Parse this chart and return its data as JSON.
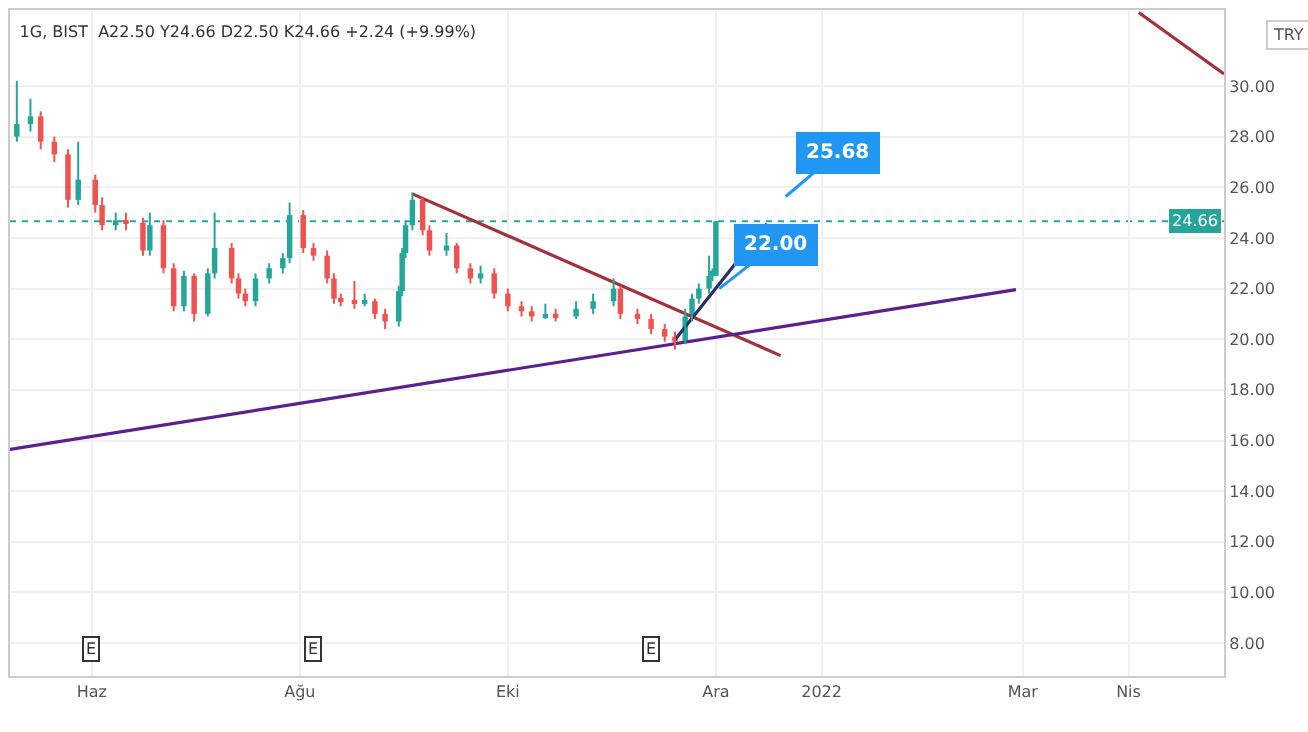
{
  "chart_data": {
    "type": "candlestick",
    "title": "1G, BIST  A22.50 Y24.66 D22.50 K24.66 +2.24 (+9.99%)",
    "x": [
      "2021-05-10",
      "2021-05-14",
      "2021-05-17",
      "2021-05-21",
      "2021-05-25",
      "2021-05-28",
      "2021-06-02",
      "2021-06-04",
      "2021-06-08",
      "2021-06-11",
      "2021-06-16",
      "2021-06-18",
      "2021-06-22",
      "2021-06-25",
      "2021-06-28",
      "2021-07-01",
      "2021-07-05",
      "2021-07-07",
      "2021-07-12",
      "2021-07-14",
      "2021-07-16",
      "2021-07-19",
      "2021-07-23",
      "2021-07-27",
      "2021-07-29",
      "2021-08-02",
      "2021-08-05",
      "2021-08-09",
      "2021-08-11",
      "2021-08-13",
      "2021-08-17",
      "2021-08-20",
      "2021-08-23",
      "2021-08-26",
      "2021-08-30",
      "2021-08-31",
      "2021-09-01",
      "2021-09-03",
      "2021-09-06",
      "2021-09-08",
      "2021-09-13",
      "2021-09-16",
      "2021-09-20",
      "2021-09-23",
      "2021-09-27",
      "2021-10-01",
      "2021-10-05",
      "2021-10-08",
      "2021-10-12",
      "2021-10-15",
      "2021-10-21",
      "2021-10-26",
      "2021-11-01",
      "2021-11-03",
      "2021-11-08",
      "2021-11-12",
      "2021-11-16",
      "2021-11-19",
      "2021-11-22",
      "2021-11-24",
      "2021-11-26",
      "2021-11-29",
      "2021-11-30",
      "2021-12-01"
    ],
    "ohlc": [
      [
        28.0,
        30.2,
        27.8,
        28.5
      ],
      [
        28.5,
        29.5,
        28.2,
        28.8
      ],
      [
        28.8,
        29.0,
        27.5,
        27.8
      ],
      [
        27.8,
        28.0,
        27.0,
        27.3
      ],
      [
        27.3,
        27.5,
        25.2,
        25.5
      ],
      [
        25.5,
        27.8,
        25.3,
        26.3
      ],
      [
        26.3,
        26.5,
        25.0,
        25.3
      ],
      [
        25.3,
        25.6,
        24.3,
        24.5
      ],
      [
        24.5,
        25.0,
        24.3,
        24.7
      ],
      [
        24.7,
        25.0,
        24.3,
        24.6
      ],
      [
        24.6,
        24.8,
        23.3,
        23.5
      ],
      [
        23.5,
        25.0,
        23.3,
        24.5
      ],
      [
        24.5,
        24.7,
        22.6,
        22.8
      ],
      [
        22.8,
        23.0,
        21.1,
        21.3
      ],
      [
        21.3,
        22.7,
        21.1,
        22.5
      ],
      [
        22.5,
        22.6,
        20.7,
        21.0
      ],
      [
        21.0,
        22.8,
        20.9,
        22.6
      ],
      [
        22.6,
        25.0,
        22.4,
        23.6
      ],
      [
        23.6,
        23.8,
        22.2,
        22.4
      ],
      [
        22.4,
        22.6,
        21.6,
        21.8
      ],
      [
        21.8,
        22.0,
        21.3,
        21.5
      ],
      [
        21.5,
        22.6,
        21.3,
        22.4
      ],
      [
        22.4,
        23.0,
        22.2,
        22.8
      ],
      [
        22.8,
        23.4,
        22.6,
        23.2
      ],
      [
        23.2,
        25.4,
        23.0,
        24.9
      ],
      [
        24.9,
        25.1,
        23.4,
        23.6
      ],
      [
        23.6,
        23.8,
        23.1,
        23.3
      ],
      [
        23.3,
        23.5,
        22.2,
        22.4
      ],
      [
        22.4,
        22.6,
        21.4,
        21.6
      ],
      [
        21.6,
        21.8,
        21.3,
        21.5
      ],
      [
        21.5,
        22.3,
        21.2,
        21.4
      ],
      [
        21.4,
        21.8,
        21.3,
        21.5
      ],
      [
        21.5,
        21.6,
        20.8,
        21.0
      ],
      [
        21.0,
        21.2,
        20.4,
        20.7
      ],
      [
        20.7,
        22.1,
        20.5,
        21.9
      ],
      [
        21.9,
        23.6,
        21.7,
        23.4
      ],
      [
        23.4,
        24.7,
        23.2,
        24.5
      ],
      [
        24.5,
        25.8,
        24.3,
        25.5
      ],
      [
        25.5,
        25.6,
        24.1,
        24.3
      ],
      [
        24.3,
        24.5,
        23.3,
        23.5
      ],
      [
        23.5,
        24.2,
        23.3,
        23.7
      ],
      [
        23.7,
        23.8,
        22.6,
        22.8
      ],
      [
        22.8,
        23.0,
        22.2,
        22.4
      ],
      [
        22.4,
        22.9,
        22.2,
        22.6
      ],
      [
        22.6,
        22.8,
        21.6,
        21.8
      ],
      [
        21.8,
        22.0,
        21.1,
        21.3
      ],
      [
        21.3,
        21.5,
        20.9,
        21.1
      ],
      [
        21.1,
        21.3,
        20.7,
        20.9
      ],
      [
        20.9,
        21.4,
        20.8,
        21.0
      ],
      [
        21.0,
        21.2,
        20.7,
        20.9
      ],
      [
        20.9,
        21.5,
        20.8,
        21.2
      ],
      [
        21.2,
        21.8,
        21.0,
        21.5
      ],
      [
        21.5,
        22.4,
        21.3,
        22.0
      ],
      [
        22.0,
        22.1,
        20.8,
        21.0
      ],
      [
        21.0,
        21.2,
        20.6,
        20.8
      ],
      [
        20.8,
        21.0,
        20.2,
        20.4
      ],
      [
        20.4,
        20.6,
        19.9,
        20.1
      ],
      [
        20.1,
        20.3,
        19.6,
        19.9
      ],
      [
        19.9,
        21.2,
        19.8,
        20.9
      ],
      [
        20.9,
        21.8,
        20.7,
        21.6
      ],
      [
        21.6,
        22.2,
        21.4,
        22.0
      ],
      [
        22.0,
        23.3,
        21.8,
        22.5
      ],
      [
        22.5,
        22.8,
        22.3,
        22.7
      ],
      [
        22.5,
        24.66,
        22.5,
        24.66
      ]
    ],
    "colors": [
      "#26a69a",
      "#26a69a",
      "#ef5350",
      "#ef5350",
      "#ef5350",
      "#26a69a",
      "#ef5350",
      "#ef5350",
      "#26a69a",
      "#ef5350",
      "#ef5350",
      "#26a69a",
      "#ef5350",
      "#ef5350",
      "#26a69a",
      "#ef5350",
      "#26a69a",
      "#26a69a",
      "#ef5350",
      "#ef5350",
      "#ef5350",
      "#26a69a",
      "#26a69a",
      "#26a69a",
      "#26a69a",
      "#ef5350",
      "#ef5350",
      "#ef5350",
      "#ef5350",
      "#ef5350",
      "#ef5350",
      "#26a69a",
      "#ef5350",
      "#ef5350",
      "#26a69a",
      "#26a69a",
      "#26a69a",
      "#26a69a",
      "#ef5350",
      "#ef5350",
      "#26a69a",
      "#ef5350",
      "#ef5350",
      "#26a69a",
      "#ef5350",
      "#ef5350",
      "#ef5350",
      "#ef5350",
      "#26a69a",
      "#ef5350",
      "#26a69a",
      "#26a69a",
      "#26a69a",
      "#ef5350",
      "#ef5350",
      "#ef5350",
      "#ef5350",
      "#ef5350",
      "#26a69a",
      "#26a69a",
      "#26a69a",
      "#26a69a",
      "#26a69a",
      "#26a69a"
    ],
    "series": [
      {
        "type": "line",
        "x": [
          "2021-09-03",
          "2021-12-20"
        ],
        "values": [
          25.74,
          19.35
        ],
        "color": "#a3303a"
      },
      {
        "type": "line",
        "x": [
          "2022-04-04",
          "2022-04-29"
        ],
        "values": [
          32.9,
          30.47
        ],
        "color": "#a3303a"
      },
      {
        "type": "line",
        "x": [
          "2021-05-08",
          "2022-02-27"
        ],
        "values": [
          15.65,
          21.96
        ],
        "color": "#5b1f8f"
      },
      {
        "type": "line",
        "x": [
          "2021-11-19",
          "2021-12-16"
        ],
        "values": [
          19.98,
          24.56
        ],
        "color": "#2b2f6b"
      }
    ],
    "annotations": [
      "25.68",
      {
        "text": "22.00",
        "x": "2021-12-02",
        "y": 22.0
      },
      {
        "text": "E",
        "x": "2021-06-01",
        "y": 7.8
      },
      {
        "text": "E",
        "x": "2021-08-05",
        "y": 7.8
      },
      {
        "text": "E",
        "x": "2021-11-12",
        "y": 7.8
      },
      "TRY"
    ],
    "ref_lines": [
      {
        "axis": "y",
        "value": 24.66,
        "label": "24.66",
        "color": "#26a69a",
        "line_style": "dotted"
      }
    ],
    "xlim": [
      "2021-05-08",
      "2022-04-29"
    ],
    "xticks": [
      {
        "value": "2021-06-01",
        "label": "Haz"
      },
      {
        "value": "2021-08-01",
        "label": "Ağu"
      },
      {
        "value": "2021-10-01",
        "label": "Eki"
      },
      {
        "value": "2021-12-01",
        "label": "Ara"
      },
      {
        "value": "2022-01-01",
        "label": "2022"
      },
      {
        "value": "2022-03-01",
        "label": "Mar"
      },
      {
        "value": "2022-04-01",
        "label": "Nis"
      }
    ],
    "ylim": [
      6.7,
      33.0
    ],
    "yticks": [
      {
        "value": 8,
        "label": "8.00"
      },
      {
        "value": 10,
        "label": "10.00"
      },
      {
        "value": 12,
        "label": "12.00"
      },
      {
        "value": 14,
        "label": "14.00"
      },
      {
        "value": 16,
        "label": "16.00"
      },
      {
        "value": 18,
        "label": "18.00"
      },
      {
        "value": 20,
        "label": "20.00"
      },
      {
        "value": 22,
        "label": "22.00"
      },
      {
        "value": 24,
        "label": "24.00"
      },
      {
        "value": 26,
        "label": "26.00"
      },
      {
        "value": 28,
        "label": "28.00"
      },
      {
        "value": 30,
        "label": "30.00"
      }
    ],
    "grid": true,
    "line_style": "solid"
  }
}
